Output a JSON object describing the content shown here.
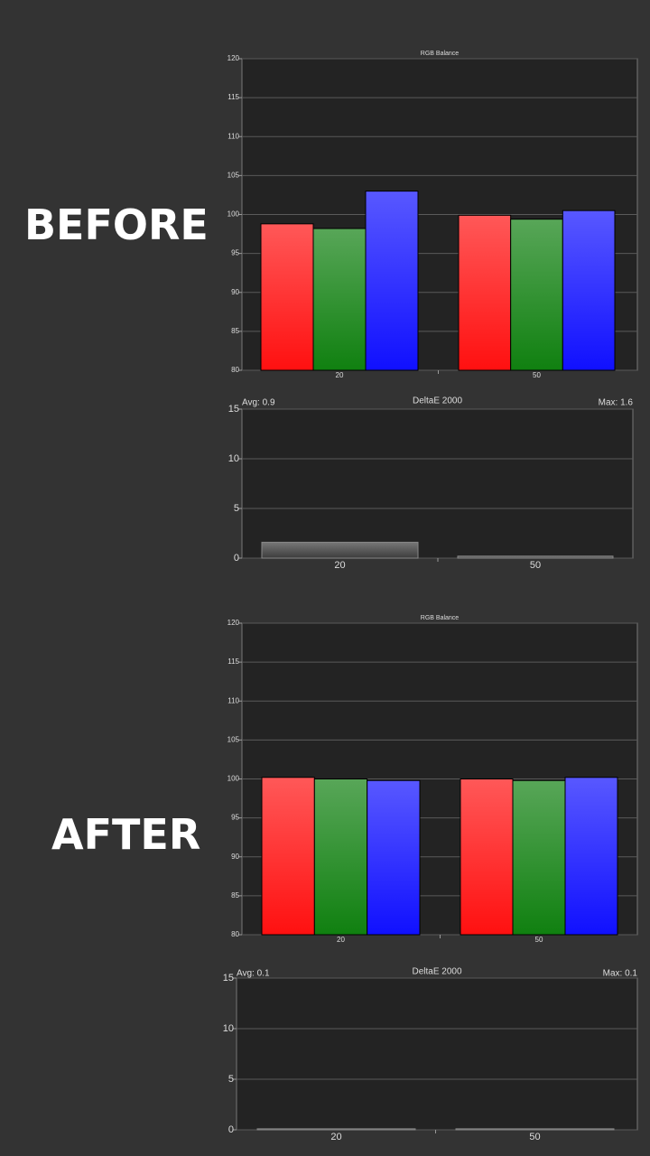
{
  "headings": [
    "BEFORE",
    "AFTER"
  ],
  "chart_data": [
    {
      "type": "bar",
      "title": "RGB Balance",
      "categories": [
        "20",
        "50"
      ],
      "series": [
        {
          "color": "#ff1010",
          "values": [
            98.8,
            99.9
          ]
        },
        {
          "color": "#108010",
          "values": [
            98.2,
            99.4
          ]
        },
        {
          "color": "#1010ff",
          "values": [
            103.0,
            100.5
          ]
        }
      ],
      "ylim": [
        80,
        120
      ],
      "yticks": [
        80,
        85,
        90,
        95,
        100,
        105,
        110,
        115,
        120
      ],
      "grid": true
    },
    {
      "type": "bar",
      "title": "DeltaE 2000",
      "annotations": [
        "Avg: 0.9",
        "Max: 1.6"
      ],
      "categories": [
        "20",
        "50"
      ],
      "values": [
        1.6,
        0.2
      ],
      "color": "#3c3c3c",
      "ylim": [
        0,
        15
      ],
      "yticks": [
        0,
        5,
        10,
        15
      ],
      "grid": true
    },
    {
      "type": "bar",
      "title": "RGB Balance",
      "categories": [
        "20",
        "50"
      ],
      "series": [
        {
          "color": "#ff1010",
          "values": [
            100.2,
            100.0
          ]
        },
        {
          "color": "#108010",
          "values": [
            100.0,
            99.8
          ]
        },
        {
          "color": "#1010ff",
          "values": [
            99.8,
            100.2
          ]
        }
      ],
      "ylim": [
        80,
        120
      ],
      "yticks": [
        80,
        85,
        90,
        95,
        100,
        105,
        110,
        115,
        120
      ],
      "grid": true
    },
    {
      "type": "bar",
      "title": "DeltaE 2000",
      "annotations": [
        "Avg: 0.1",
        "Max: 0.1"
      ],
      "categories": [
        "20",
        "50"
      ],
      "values": [
        0.1,
        0.1
      ],
      "color": "#3c3c3c",
      "ylim": [
        0,
        15
      ],
      "yticks": [
        0,
        5,
        10,
        15
      ],
      "grid": true
    }
  ]
}
